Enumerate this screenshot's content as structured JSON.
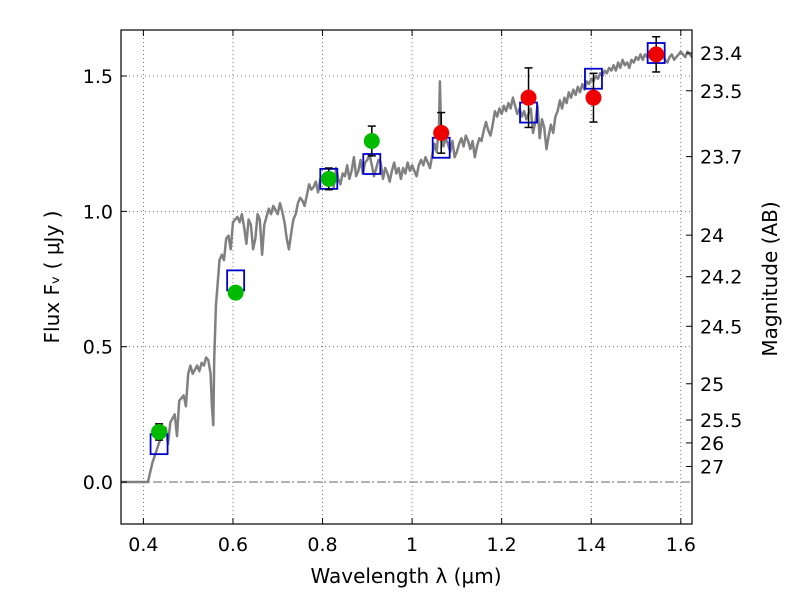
{
  "chart_data": {
    "type": "scatter",
    "title": "",
    "xlabel": "Wavelength  λ (μm)",
    "ylabel": "Flux  Fᵥ  ( μJy )",
    "y2label": "Magnitude (AB)",
    "xlim": [
      0.35,
      1.625
    ],
    "ylim": [
      -0.155,
      1.67
    ],
    "grid": true,
    "x_ticks": [
      0.4,
      0.6,
      0.8,
      1.0,
      1.2,
      1.4,
      1.6
    ],
    "x_tick_labels": [
      "0.4",
      "0.6",
      "0.8",
      "1",
      "1.2",
      "1.4",
      "1.6"
    ],
    "y_ticks": [
      0.0,
      0.5,
      1.0,
      1.5
    ],
    "y_tick_labels": [
      "0.0",
      "0.5",
      "1.0",
      "1.5"
    ],
    "mag_ticks": [
      "23.4",
      "23.5",
      "23.7",
      "24",
      "24.2",
      "24.5",
      "25",
      "25.5",
      "26",
      "27"
    ],
    "colors": {
      "model": "#808080",
      "green": "#00bb00",
      "red": "#ee0000",
      "box": "#0000cc",
      "error": "#000000"
    },
    "series": [
      {
        "name": "model spectrum",
        "kind": "line",
        "points": [
          [
            0.35,
            0.0
          ],
          [
            0.41,
            0.0
          ],
          [
            0.42,
            0.07
          ],
          [
            0.43,
            0.12
          ],
          [
            0.44,
            0.17
          ],
          [
            0.45,
            0.2
          ],
          [
            0.455,
            0.14
          ],
          [
            0.46,
            0.22
          ],
          [
            0.47,
            0.25
          ],
          [
            0.475,
            0.17
          ],
          [
            0.48,
            0.3
          ],
          [
            0.49,
            0.32
          ],
          [
            0.495,
            0.28
          ],
          [
            0.5,
            0.4
          ],
          [
            0.505,
            0.43
          ],
          [
            0.51,
            0.4
          ],
          [
            0.52,
            0.43
          ],
          [
            0.525,
            0.41
          ],
          [
            0.53,
            0.44
          ],
          [
            0.535,
            0.43
          ],
          [
            0.54,
            0.46
          ],
          [
            0.545,
            0.45
          ],
          [
            0.55,
            0.4
          ],
          [
            0.553,
            0.28
          ],
          [
            0.556,
            0.21
          ],
          [
            0.558,
            0.45
          ],
          [
            0.562,
            0.65
          ],
          [
            0.57,
            0.82
          ],
          [
            0.575,
            0.84
          ],
          [
            0.58,
            0.82
          ],
          [
            0.585,
            0.9
          ],
          [
            0.59,
            0.91
          ],
          [
            0.595,
            0.86
          ],
          [
            0.6,
            0.96
          ],
          [
            0.61,
            0.98
          ],
          [
            0.615,
            0.96
          ],
          [
            0.62,
            0.99
          ],
          [
            0.625,
            0.94
          ],
          [
            0.63,
            0.88
          ],
          [
            0.635,
            0.97
          ],
          [
            0.64,
            0.95
          ],
          [
            0.645,
            0.86
          ],
          [
            0.65,
            0.9
          ],
          [
            0.655,
            0.99
          ],
          [
            0.66,
            0.97
          ],
          [
            0.665,
            0.84
          ],
          [
            0.67,
            0.95
          ],
          [
            0.675,
            0.98
          ],
          [
            0.68,
            1.01
          ],
          [
            0.685,
            0.99
          ],
          [
            0.69,
            1.02
          ],
          [
            0.7,
            0.99
          ],
          [
            0.705,
            1.03
          ],
          [
            0.71,
            1.0
          ],
          [
            0.715,
            0.96
          ],
          [
            0.72,
            0.9
          ],
          [
            0.725,
            0.86
          ],
          [
            0.73,
            0.92
          ],
          [
            0.735,
            0.97
          ],
          [
            0.74,
            0.99
          ],
          [
            0.745,
            1.03
          ],
          [
            0.75,
            1.05
          ],
          [
            0.755,
            1.04
          ],
          [
            0.76,
            1.02
          ],
          [
            0.765,
            1.06
          ],
          [
            0.77,
            1.1
          ],
          [
            0.775,
            1.08
          ],
          [
            0.78,
            1.09
          ],
          [
            0.785,
            1.11
          ],
          [
            0.79,
            1.07
          ],
          [
            0.795,
            1.12
          ],
          [
            0.8,
            1.13
          ],
          [
            0.805,
            1.1
          ],
          [
            0.81,
            1.12
          ],
          [
            0.815,
            1.1
          ],
          [
            0.82,
            1.14
          ],
          [
            0.825,
            1.09
          ],
          [
            0.83,
            1.16
          ],
          [
            0.835,
            1.12
          ],
          [
            0.84,
            1.1
          ],
          [
            0.845,
            1.14
          ],
          [
            0.85,
            1.13
          ],
          [
            0.855,
            1.17
          ],
          [
            0.86,
            1.12
          ],
          [
            0.865,
            1.15
          ],
          [
            0.87,
            1.2
          ],
          [
            0.875,
            1.13
          ],
          [
            0.88,
            1.15
          ],
          [
            0.885,
            1.19
          ],
          [
            0.89,
            1.14
          ],
          [
            0.895,
            1.18
          ],
          [
            0.9,
            1.19
          ],
          [
            0.905,
            1.21
          ],
          [
            0.91,
            1.17
          ],
          [
            0.915,
            1.13
          ],
          [
            0.92,
            1.16
          ],
          [
            0.925,
            1.19
          ],
          [
            0.93,
            1.18
          ],
          [
            0.935,
            1.12
          ],
          [
            0.94,
            1.16
          ],
          [
            0.945,
            1.14
          ],
          [
            0.95,
            1.11
          ],
          [
            0.955,
            1.15
          ],
          [
            0.96,
            1.18
          ],
          [
            0.965,
            1.14
          ],
          [
            0.97,
            1.16
          ],
          [
            0.975,
            1.12
          ],
          [
            0.98,
            1.16
          ],
          [
            0.985,
            1.14
          ],
          [
            0.99,
            1.18
          ],
          [
            0.995,
            1.15
          ],
          [
            1.0,
            1.17
          ],
          [
            1.005,
            1.15
          ],
          [
            1.01,
            1.13
          ],
          [
            1.015,
            1.17
          ],
          [
            1.02,
            1.19
          ],
          [
            1.025,
            1.17
          ],
          [
            1.03,
            1.2
          ],
          [
            1.035,
            1.18
          ],
          [
            1.04,
            1.16
          ],
          [
            1.045,
            1.21
          ],
          [
            1.05,
            1.25
          ],
          [
            1.055,
            1.22
          ],
          [
            1.06,
            1.32
          ],
          [
            1.062,
            1.48
          ],
          [
            1.065,
            1.28
          ],
          [
            1.07,
            1.24
          ],
          [
            1.075,
            1.27
          ],
          [
            1.08,
            1.25
          ],
          [
            1.085,
            1.22
          ],
          [
            1.09,
            1.26
          ],
          [
            1.095,
            1.2
          ],
          [
            1.1,
            1.22
          ],
          [
            1.105,
            1.25
          ],
          [
            1.11,
            1.27
          ],
          [
            1.115,
            1.24
          ],
          [
            1.12,
            1.28
          ],
          [
            1.125,
            1.26
          ],
          [
            1.13,
            1.23
          ],
          [
            1.135,
            1.26
          ],
          [
            1.14,
            1.2
          ],
          [
            1.145,
            1.24
          ],
          [
            1.15,
            1.27
          ],
          [
            1.155,
            1.26
          ],
          [
            1.16,
            1.3
          ],
          [
            1.165,
            1.33
          ],
          [
            1.17,
            1.3
          ],
          [
            1.175,
            1.28
          ],
          [
            1.18,
            1.32
          ],
          [
            1.185,
            1.37
          ],
          [
            1.19,
            1.35
          ],
          [
            1.195,
            1.38
          ],
          [
            1.2,
            1.36
          ],
          [
            1.205,
            1.39
          ],
          [
            1.21,
            1.37
          ],
          [
            1.215,
            1.4
          ],
          [
            1.22,
            1.38
          ],
          [
            1.225,
            1.42
          ],
          [
            1.23,
            1.39
          ],
          [
            1.235,
            1.36
          ],
          [
            1.24,
            1.38
          ],
          [
            1.245,
            1.35
          ],
          [
            1.25,
            1.37
          ],
          [
            1.255,
            1.34
          ],
          [
            1.26,
            1.36
          ],
          [
            1.265,
            1.38
          ],
          [
            1.27,
            1.29
          ],
          [
            1.275,
            1.33
          ],
          [
            1.28,
            1.39
          ],
          [
            1.285,
            1.27
          ],
          [
            1.29,
            1.34
          ],
          [
            1.295,
            1.31
          ],
          [
            1.3,
            1.23
          ],
          [
            1.305,
            1.28
          ],
          [
            1.31,
            1.32
          ],
          [
            1.315,
            1.29
          ],
          [
            1.32,
            1.35
          ],
          [
            1.325,
            1.37
          ],
          [
            1.33,
            1.41
          ],
          [
            1.335,
            1.38
          ],
          [
            1.34,
            1.42
          ],
          [
            1.345,
            1.4
          ],
          [
            1.35,
            1.44
          ],
          [
            1.355,
            1.42
          ],
          [
            1.36,
            1.45
          ],
          [
            1.365,
            1.43
          ],
          [
            1.37,
            1.46
          ],
          [
            1.375,
            1.44
          ],
          [
            1.38,
            1.47
          ],
          [
            1.385,
            1.45
          ],
          [
            1.39,
            1.48
          ],
          [
            1.395,
            1.47
          ],
          [
            1.4,
            1.49
          ],
          [
            1.405,
            1.48
          ],
          [
            1.41,
            1.5
          ],
          [
            1.415,
            1.49
          ],
          [
            1.42,
            1.51
          ],
          [
            1.425,
            1.5
          ],
          [
            1.43,
            1.52
          ],
          [
            1.435,
            1.51
          ],
          [
            1.44,
            1.53
          ],
          [
            1.445,
            1.52
          ],
          [
            1.45,
            1.54
          ],
          [
            1.455,
            1.52
          ],
          [
            1.46,
            1.55
          ],
          [
            1.465,
            1.53
          ],
          [
            1.47,
            1.56
          ],
          [
            1.475,
            1.54
          ],
          [
            1.48,
            1.55
          ],
          [
            1.485,
            1.53
          ],
          [
            1.49,
            1.56
          ],
          [
            1.495,
            1.55
          ],
          [
            1.5,
            1.57
          ],
          [
            1.505,
            1.56
          ],
          [
            1.51,
            1.58
          ],
          [
            1.515,
            1.56
          ],
          [
            1.52,
            1.58
          ],
          [
            1.525,
            1.57
          ],
          [
            1.53,
            1.59
          ],
          [
            1.535,
            1.57
          ],
          [
            1.54,
            1.58
          ],
          [
            1.545,
            1.57
          ],
          [
            1.55,
            1.56
          ],
          [
            1.555,
            1.57
          ],
          [
            1.56,
            1.58
          ],
          [
            1.565,
            1.56
          ],
          [
            1.57,
            1.55
          ],
          [
            1.575,
            1.57
          ],
          [
            1.58,
            1.58
          ],
          [
            1.585,
            1.56
          ],
          [
            1.59,
            1.57
          ],
          [
            1.595,
            1.58
          ],
          [
            1.6,
            1.59
          ],
          [
            1.605,
            1.58
          ],
          [
            1.61,
            1.57
          ],
          [
            1.615,
            1.59
          ],
          [
            1.62,
            1.58
          ],
          [
            1.625,
            1.57
          ]
        ]
      },
      {
        "name": "green photometry",
        "kind": "circles",
        "color": "green",
        "points": [
          {
            "x": 0.435,
            "y": 0.185,
            "err": 0.03
          },
          {
            "x": 0.606,
            "y": 0.7,
            "err": 0.0
          },
          {
            "x": 0.814,
            "y": 1.12,
            "err": 0.04
          },
          {
            "x": 0.91,
            "y": 1.26,
            "err": 0.055
          }
        ]
      },
      {
        "name": "red photometry",
        "kind": "circles",
        "color": "red",
        "points": [
          {
            "x": 1.065,
            "y": 1.29,
            "err": 0.075
          },
          {
            "x": 1.26,
            "y": 1.42,
            "err": 0.11
          },
          {
            "x": 1.405,
            "y": 1.42,
            "err": 0.09
          },
          {
            "x": 1.545,
            "y": 1.58,
            "err": 0.065
          }
        ]
      },
      {
        "name": "model band fluxes",
        "kind": "boxes",
        "color": "box",
        "points": [
          {
            "x": 0.435,
            "y": 0.14
          },
          {
            "x": 0.606,
            "y": 0.745
          },
          {
            "x": 0.814,
            "y": 1.12
          },
          {
            "x": 0.91,
            "y": 1.175
          },
          {
            "x": 1.065,
            "y": 1.235
          },
          {
            "x": 1.26,
            "y": 1.365
          },
          {
            "x": 1.405,
            "y": 1.49
          },
          {
            "x": 1.545,
            "y": 1.585
          }
        ]
      }
    ]
  }
}
